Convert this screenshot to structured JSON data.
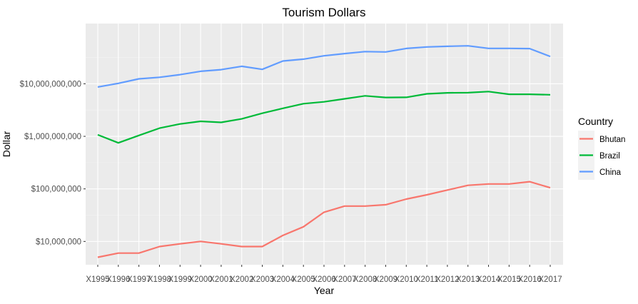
{
  "chart_data": {
    "type": "line",
    "title": "Tourism Dollars",
    "xlabel": "Year",
    "ylabel": "Dollar",
    "y_scale": "log10",
    "ylim": [
      3600000,
      140000000000
    ],
    "grid": true,
    "legend_position": "right",
    "legend_title": "Country",
    "categories": [
      "X1995",
      "X1996",
      "X1997",
      "X1998",
      "X1999",
      "X2000",
      "X2001",
      "X2002",
      "X2003",
      "X2004",
      "X2005",
      "X2006",
      "X2007",
      "X2008",
      "X2009",
      "X2010",
      "X2011",
      "X2012",
      "X2013",
      "X2014",
      "X2015",
      "X2016",
      "X2017"
    ],
    "y_ticks": [
      10000000,
      100000000,
      1000000000,
      10000000000
    ],
    "y_tick_labels": [
      "$10,000,000",
      "$100,000,000",
      "$1,000,000,000",
      "$10,000,000,000"
    ],
    "series": [
      {
        "name": "Bhutan",
        "color": "#F8766D",
        "values": [
          5000000,
          6000000,
          6000000,
          8000000,
          9000000,
          10000000,
          9000000,
          8000000,
          8000000,
          13000000,
          19000000,
          36000000,
          47000000,
          47000000,
          50000000,
          64000000,
          77000000,
          95000000,
          117000000,
          124000000,
          124000000,
          137000000,
          105000000
        ]
      },
      {
        "name": "Brazil",
        "color": "#00BA38",
        "values": [
          1070000000,
          750000000,
          1040000000,
          1430000000,
          1720000000,
          1930000000,
          1840000000,
          2150000000,
          2750000000,
          3410000000,
          4180000000,
          4530000000,
          5170000000,
          5900000000,
          5480000000,
          5520000000,
          6440000000,
          6730000000,
          6770000000,
          7110000000,
          6320000000,
          6320000000,
          6180000000
        ]
      },
      {
        "name": "China",
        "color": "#619CFF",
        "values": [
          8700000000,
          10200000000,
          12400000000,
          13300000000,
          14900000000,
          17300000000,
          18600000000,
          21500000000,
          18800000000,
          27100000000,
          29400000000,
          34100000000,
          37500000000,
          41000000000,
          40300000000,
          47000000000,
          50200000000,
          51700000000,
          52800000000,
          47100000000,
          47100000000,
          46700000000,
          33100000000
        ]
      }
    ]
  }
}
